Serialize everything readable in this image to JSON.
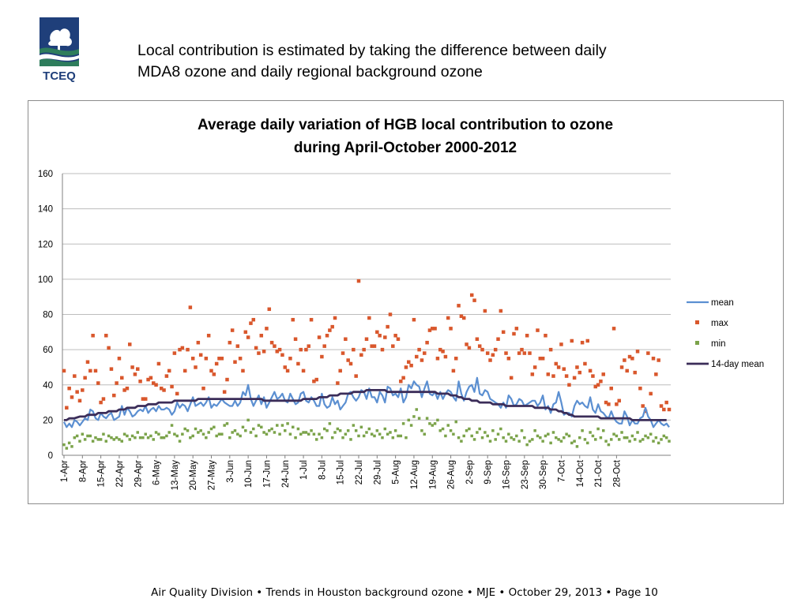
{
  "header": {
    "title_line1": "Local contribution is estimated by taking the difference between daily",
    "title_line2": "MDA8 ozone and daily regional background ozone",
    "logo_text": "TCEQ"
  },
  "footer": {
    "text": "Air Quality Division • Trends in Houston background ozone  •  MJE  •  October 29, 2013  •   Page 10"
  },
  "colors": {
    "mean": "#5b8fd1",
    "max": "#d9572c",
    "min": "#7ba34a",
    "mean14": "#3b2d59",
    "grid": "#bdbdbd",
    "logo_blue": "#1f3f7a",
    "logo_green": "#2e7d5c"
  },
  "chart_data": {
    "type": "line",
    "title_line1": "Average daily variation of HGB local contribution to ozone",
    "title_line2": "during April-October 2000-2012",
    "xlabel": "",
    "ylabel": "",
    "ylim": [
      0,
      160
    ],
    "yticks": [
      0,
      20,
      40,
      60,
      80,
      100,
      120,
      140,
      160
    ],
    "xtick_labels": [
      "1-Apr",
      "8-Apr",
      "15-Apr",
      "22-Apr",
      "29-Apr",
      "6-May",
      "13-May",
      "20-May",
      "27-May",
      "3-Jun",
      "10-Jun",
      "17-Jun",
      "24-Jun",
      "1-Jul",
      "8-Jul",
      "15-Jul",
      "22-Jul",
      "29-Jul",
      "5-Aug",
      "12-Aug",
      "19-Aug",
      "26-Aug",
      "2-Sep",
      "9-Sep",
      "16-Sep",
      "23-Sep",
      "30-Sep",
      "7-Oct",
      "14-Oct",
      "21-Oct",
      "28-Oct"
    ],
    "grid": true,
    "legend_position": "right",
    "x_start": "1-Apr",
    "x_step_days": 1,
    "series": [
      {
        "name": "mean",
        "style": "line",
        "values": [
          19,
          16,
          18,
          16,
          20,
          19,
          17,
          19,
          21,
          20,
          26,
          25,
          21,
          20,
          24,
          22,
          21,
          23,
          24,
          20,
          21,
          22,
          28,
          23,
          27,
          25,
          22,
          23,
          25,
          26,
          25,
          28,
          24,
          26,
          27,
          25,
          28,
          26,
          26,
          27,
          26,
          23,
          25,
          30,
          27,
          29,
          28,
          25,
          29,
          33,
          28,
          29,
          30,
          28,
          30,
          33,
          27,
          29,
          28,
          30,
          32,
          30,
          29,
          28,
          28,
          31,
          28,
          30,
          36,
          34,
          40,
          32,
          28,
          31,
          34,
          29,
          33,
          27,
          30,
          33,
          36,
          32,
          33,
          35,
          31,
          30,
          35,
          32,
          29,
          30,
          35,
          36,
          31,
          30,
          33,
          31,
          28,
          28,
          35,
          29,
          27,
          28,
          33,
          29,
          31,
          26,
          28,
          30,
          35,
          36,
          33,
          31,
          33,
          37,
          36,
          32,
          38,
          33,
          33,
          30,
          36,
          34,
          30,
          39,
          38,
          34,
          35,
          33,
          38,
          30,
          33,
          40,
          38,
          42,
          40,
          39,
          33,
          38,
          42,
          35,
          34,
          36,
          32,
          36,
          32,
          35,
          37,
          36,
          33,
          31,
          42,
          35,
          31,
          36,
          39,
          40,
          36,
          44,
          35,
          34,
          37,
          36,
          32,
          31,
          30,
          29,
          27,
          30,
          27,
          34,
          32,
          28,
          29,
          32,
          31,
          28,
          29,
          30,
          31,
          31,
          28,
          30,
          34,
          26,
          28,
          24,
          29,
          30,
          36,
          30,
          23,
          24,
          24,
          22,
          28,
          31,
          29,
          30,
          28,
          27,
          33,
          26,
          24,
          29,
          25,
          24,
          22,
          21,
          25,
          21,
          19,
          18,
          18,
          25,
          22,
          17,
          20,
          18,
          18,
          21,
          22,
          27,
          22,
          20,
          16,
          18,
          20,
          18,
          17,
          18,
          16
        ]
      },
      {
        "name": "max",
        "style": "markers",
        "values": [
          48,
          27,
          38,
          33,
          45,
          36,
          31,
          37,
          44,
          53,
          48,
          68,
          48,
          41,
          30,
          32,
          68,
          61,
          49,
          34,
          41,
          55,
          44,
          37,
          38,
          63,
          50,
          46,
          49,
          42,
          32,
          32,
          43,
          44,
          41,
          40,
          52,
          38,
          37,
          45,
          48,
          39,
          58,
          35,
          60,
          61,
          48,
          60,
          84,
          55,
          50,
          64,
          57,
          38,
          55,
          68,
          48,
          46,
          52,
          55,
          55,
          36,
          43,
          64,
          71,
          53,
          62,
          55,
          48,
          70,
          67,
          75,
          77,
          61,
          58,
          68,
          59,
          72,
          83,
          64,
          62,
          59,
          60,
          57,
          50,
          48,
          55,
          77,
          66,
          52,
          60,
          48,
          60,
          62,
          77,
          42,
          43,
          67,
          56,
          62,
          68,
          71,
          73,
          78,
          41,
          48,
          58,
          66,
          54,
          52,
          60,
          45,
          99,
          57,
          60,
          66,
          78,
          62,
          62,
          70,
          68,
          60,
          67,
          73,
          80,
          62,
          68,
          66,
          42,
          44,
          50,
          53,
          51,
          77,
          56,
          60,
          54,
          58,
          64,
          71,
          72,
          72,
          55,
          60,
          59,
          56,
          78,
          72,
          48,
          55,
          85,
          79,
          78,
          63,
          61,
          91,
          88,
          66,
          62,
          60,
          82,
          58,
          54,
          57,
          60,
          66,
          82,
          70,
          58,
          55,
          44,
          69,
          72,
          58,
          60,
          58,
          68,
          58,
          46,
          50,
          71,
          55,
          55,
          68,
          46,
          60,
          45,
          52,
          50,
          63,
          49,
          45,
          40,
          65,
          44,
          50,
          47,
          64,
          52,
          65,
          48,
          45,
          39,
          40,
          42,
          46,
          30,
          29,
          38,
          72,
          29,
          31,
          50,
          54,
          48,
          56,
          55,
          47,
          59,
          38,
          28,
          25,
          58,
          35,
          55,
          46,
          54,
          28,
          26,
          30,
          26
        ]
      },
      {
        "name": "min",
        "style": "markers",
        "values": [
          6,
          4,
          7,
          5,
          10,
          11,
          8,
          12,
          9,
          11,
          11,
          8,
          10,
          9,
          9,
          12,
          8,
          11,
          10,
          9,
          10,
          9,
          8,
          12,
          11,
          9,
          11,
          10,
          13,
          10,
          10,
          12,
          10,
          11,
          9,
          13,
          12,
          10,
          10,
          11,
          13,
          17,
          12,
          11,
          8,
          12,
          15,
          14,
          10,
          11,
          15,
          13,
          14,
          12,
          10,
          13,
          15,
          16,
          11,
          12,
          12,
          17,
          18,
          10,
          13,
          14,
          12,
          11,
          16,
          14,
          20,
          13,
          15,
          11,
          17,
          16,
          13,
          12,
          14,
          15,
          13,
          17,
          12,
          17,
          14,
          18,
          12,
          16,
          10,
          15,
          12,
          13,
          13,
          12,
          14,
          12,
          9,
          12,
          10,
          15,
          14,
          18,
          10,
          13,
          15,
          14,
          10,
          12,
          14,
          9,
          17,
          14,
          11,
          16,
          11,
          13,
          15,
          12,
          11,
          14,
          12,
          10,
          15,
          12,
          13,
          10,
          14,
          11,
          11,
          18,
          10,
          20,
          17,
          22,
          26,
          21,
          14,
          12,
          21,
          18,
          17,
          18,
          20,
          14,
          15,
          11,
          17,
          14,
          12,
          19,
          10,
          8,
          11,
          14,
          15,
          11,
          9,
          13,
          15,
          10,
          13,
          11,
          8,
          14,
          9,
          12,
          15,
          10,
          8,
          12,
          10,
          9,
          11,
          8,
          14,
          10,
          6,
          8,
          9,
          14,
          11,
          10,
          8,
          11,
          12,
          7,
          13,
          10,
          9,
          8,
          10,
          12,
          11,
          7,
          8,
          5,
          10,
          14,
          9,
          7,
          13,
          11,
          9,
          15,
          10,
          14,
          8,
          6,
          9,
          12,
          11,
          9,
          13,
          10,
          10,
          8,
          11,
          9,
          13,
          8,
          9,
          11,
          10,
          12,
          8,
          10,
          7,
          9,
          11,
          10,
          8
        ]
      },
      {
        "name": "14-day mean",
        "style": "line",
        "values": [
          20,
          20,
          21,
          21,
          21,
          21.5,
          22,
          22,
          22,
          23,
          23,
          23,
          23,
          24,
          24,
          24,
          24,
          25,
          25,
          25,
          25,
          26,
          26,
          26,
          27,
          27,
          27,
          27,
          28,
          28,
          28,
          28,
          29,
          29,
          29,
          29,
          30,
          30,
          30,
          30,
          30,
          30,
          31,
          31,
          31,
          31,
          31,
          31,
          31,
          31,
          31,
          32,
          32,
          32,
          32,
          32,
          32,
          32,
          32,
          32,
          32,
          32,
          32,
          32,
          32,
          32,
          32,
          32,
          32,
          32,
          32,
          32,
          32,
          32,
          32,
          32,
          31,
          31,
          31,
          31,
          31,
          31,
          31,
          31,
          31,
          31,
          31,
          31,
          31,
          31,
          31,
          32,
          32,
          32,
          32,
          32,
          32,
          33,
          33,
          33,
          33,
          34,
          34,
          34,
          34,
          35,
          35,
          35,
          35,
          35,
          36,
          36,
          36,
          36,
          36,
          37,
          37,
          37,
          37,
          37,
          37,
          37,
          37,
          36,
          36,
          36,
          36,
          36,
          36,
          36,
          36,
          36,
          36,
          36,
          36,
          36,
          36,
          36,
          36,
          36,
          36,
          36,
          35,
          35,
          35,
          35,
          35,
          34,
          34,
          34,
          33,
          33,
          32,
          32,
          32,
          31,
          31,
          31,
          30,
          30,
          30,
          30,
          30,
          29,
          29,
          29,
          29,
          29,
          28,
          28,
          28,
          28,
          28,
          28,
          28,
          28,
          28,
          28,
          28,
          27,
          27,
          27,
          27,
          27,
          27,
          26,
          26,
          26,
          25,
          25,
          24,
          24,
          23,
          23,
          22,
          22,
          22,
          22,
          22,
          22,
          22,
          22,
          22,
          22,
          21,
          21,
          21,
          21,
          21,
          21,
          21,
          21,
          21,
          21,
          21,
          21,
          20,
          20,
          20,
          20,
          20,
          20,
          20,
          20,
          20,
          20,
          20,
          20,
          20,
          20
        ]
      }
    ]
  }
}
